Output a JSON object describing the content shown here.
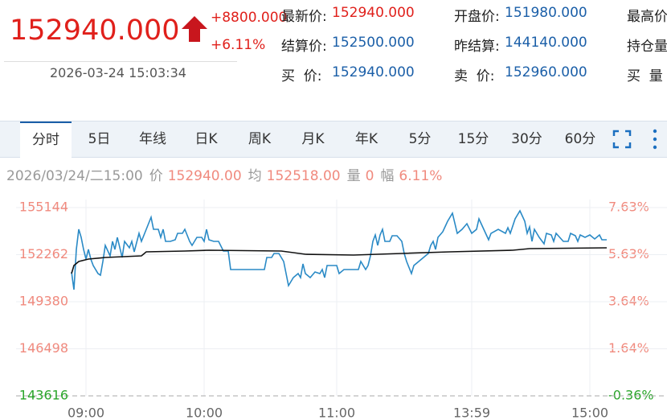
{
  "quote": {
    "price": "152940.000",
    "change": "+8800.000",
    "change_pct": "+6.11%",
    "time": "2026-03-24 15:03:34"
  },
  "fields": [
    [
      {
        "label": "最新价:",
        "value": "152940.000"
      },
      {
        "label": "开盘价:",
        "value": "151980.000"
      },
      {
        "label": "最高价"
      }
    ],
    [
      {
        "label": "结算价:",
        "value": "152500.000"
      },
      {
        "label": "昨结算:",
        "value": "144140.000"
      },
      {
        "label": "持仓量"
      }
    ],
    [
      {
        "label": "买  价:",
        "value": "152940.000"
      },
      {
        "label": "卖  价:",
        "value": "152960.000"
      },
      {
        "label": "买  量"
      }
    ]
  ],
  "tabs": [
    "分时",
    "5日",
    "年线",
    "日K",
    "周K",
    "月K",
    "年K",
    "5分",
    "15分",
    "30分",
    "60分"
  ],
  "info": [
    {
      "text": "2026/03/24/二15:00"
    },
    {
      "text": "价"
    },
    {
      "text": "152940.00",
      "hl": true
    },
    {
      "text": "均"
    },
    {
      "text": "152518.00",
      "hl": true
    },
    {
      "text": "量"
    },
    {
      "text": "0",
      "hl": true
    },
    {
      "text": "幅"
    },
    {
      "text": "6.11%",
      "hl": true
    }
  ],
  "chart_data": {
    "type": "line",
    "xlim": [
      0,
      270
    ],
    "xticks": [
      {
        "value": 29,
        "label": "09:00"
      },
      {
        "value": 78,
        "label": "10:00"
      },
      {
        "value": 133,
        "label": "11:00"
      },
      {
        "value": 189,
        "label": "13:59"
      },
      {
        "value": 238,
        "label": "15:00"
      }
    ],
    "ylim": [
      143616,
      155144
    ],
    "yticks": [
      155144,
      152262,
      149380,
      146498,
      143616
    ],
    "y2lim": [
      -0.36,
      7.63
    ],
    "y2ticks": [
      {
        "value": 7.63,
        "label": "7.63%"
      },
      {
        "value": 5.63,
        "label": "5.63%"
      },
      {
        "value": 3.64,
        "label": "3.64%"
      },
      {
        "value": 1.64,
        "label": "1.64%"
      },
      {
        "value": -0.36,
        "label": "-0.36%"
      }
    ],
    "grid": true,
    "up_color": "#f08a7e",
    "down_color": "#2aa52a",
    "series": [
      {
        "color": "#2a8ac6",
        "x": [
          23,
          24,
          25,
          26,
          27,
          28,
          29,
          30,
          31,
          32,
          34,
          35,
          36,
          37,
          39,
          40,
          41,
          42,
          44,
          45,
          47,
          48,
          49,
          51,
          52,
          54,
          56,
          57,
          59,
          60,
          61,
          62,
          64,
          66,
          67,
          69,
          70,
          72,
          73,
          75,
          77,
          78,
          79,
          80,
          82,
          84,
          86,
          88,
          89,
          103,
          104,
          106,
          107,
          109,
          111,
          113,
          115,
          117,
          118,
          119,
          120,
          122,
          124,
          126,
          127,
          128,
          129,
          131,
          133,
          134,
          136,
          139,
          142,
          143,
          145,
          146,
          147,
          148,
          149,
          150,
          151,
          152,
          153,
          155,
          156,
          158,
          160,
          161,
          162,
          164,
          165,
          167,
          169,
          171,
          172,
          173,
          174,
          175,
          177,
          179,
          181,
          183,
          185,
          187,
          189,
          191,
          192,
          194,
          196,
          197,
          200,
          203,
          204,
          205,
          207,
          209,
          211,
          212,
          213,
          214,
          215,
          217,
          219,
          220,
          222,
          223,
          224,
          227,
          229,
          230,
          232,
          233,
          234,
          236,
          238,
          240,
          242,
          243,
          245
        ],
        "values": [
          151202,
          150119,
          152582,
          153814,
          153321,
          152582,
          151991,
          152582,
          151991,
          151597,
          151104,
          151005,
          151843,
          152828,
          152188,
          153075,
          152582,
          153321,
          152089,
          153075,
          152680,
          153075,
          152434,
          153567,
          153075,
          153814,
          154553,
          153814,
          153814,
          153321,
          153814,
          153075,
          153075,
          153173,
          153567,
          153567,
          153814,
          153075,
          152828,
          153321,
          153321,
          153075,
          153814,
          153173,
          153075,
          153075,
          152483,
          152483,
          151350,
          151350,
          152089,
          152089,
          152336,
          152336,
          151843,
          150365,
          150858,
          151104,
          150858,
          151695,
          151104,
          150858,
          151202,
          151104,
          151350,
          150858,
          151597,
          151597,
          151597,
          151104,
          151350,
          151350,
          151350,
          151843,
          151350,
          151597,
          152188,
          153075,
          153469,
          152828,
          153469,
          153814,
          153075,
          153075,
          153420,
          153420,
          153075,
          152336,
          151843,
          151104,
          151597,
          151843,
          152089,
          152336,
          152828,
          153075,
          152582,
          153321,
          153666,
          154306,
          154799,
          153567,
          153814,
          154159,
          153567,
          153814,
          154454,
          153814,
          153173,
          153567,
          153814,
          153567,
          153912,
          153567,
          154454,
          154947,
          154306,
          153567,
          153962,
          153075,
          153814,
          153321,
          152927,
          153567,
          153469,
          153075,
          153567,
          153075,
          153075,
          153567,
          153420,
          153075,
          153469,
          153321,
          153469,
          153223,
          153469,
          153173,
          153173
        ]
      },
      {
        "color": "#111111",
        "x": [
          23,
          24,
          26,
          30,
          37,
          52,
          54,
          70,
          80,
          110,
          120,
          140,
          160,
          180,
          206,
          213,
          245
        ],
        "values": [
          151104,
          151597,
          151843,
          151991,
          152089,
          152188,
          152434,
          152483,
          152533,
          152483,
          152286,
          152237,
          152336,
          152434,
          152533,
          152631,
          152680
        ]
      }
    ]
  }
}
